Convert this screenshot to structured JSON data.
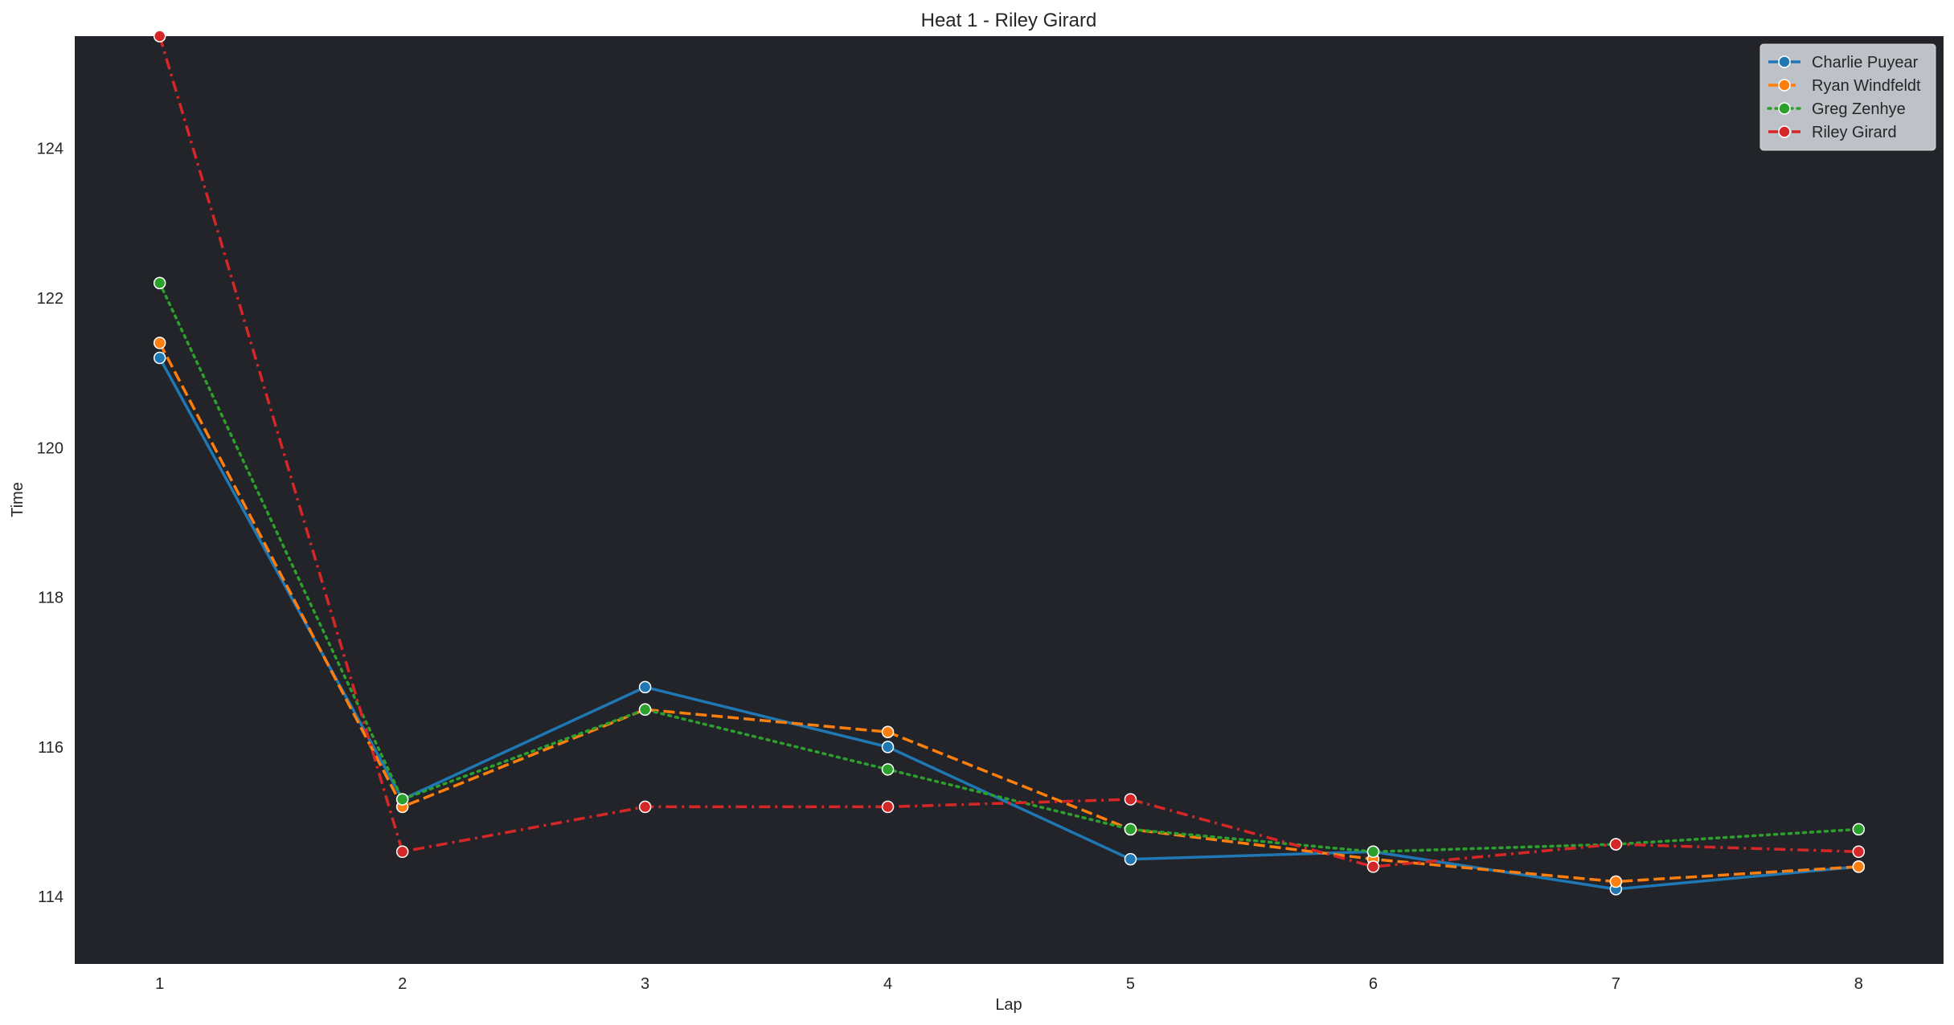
{
  "chart_data": {
    "type": "line",
    "title": "Heat 1 - Riley Girard",
    "xlabel": "Lap",
    "ylabel": "Time",
    "x": [
      1,
      2,
      3,
      4,
      5,
      6,
      7,
      8
    ],
    "xlim": [
      0.65,
      8.35
    ],
    "ylim": [
      113.1,
      125.5
    ],
    "xticks": [
      1,
      2,
      3,
      4,
      5,
      6,
      7,
      8
    ],
    "yticks": [
      114,
      116,
      118,
      120,
      122,
      124
    ],
    "grid": false,
    "plot_background": "#222429",
    "legend_position": "top-right",
    "series": [
      {
        "name": "Charlie Puyear",
        "color": "#1f77b4",
        "dash": "solid",
        "values": [
          121.2,
          115.3,
          116.8,
          116.0,
          114.5,
          114.6,
          114.1,
          114.4
        ]
      },
      {
        "name": "Ryan Windfeldt",
        "color": "#ff7f0e",
        "dash": "dashed",
        "values": [
          121.4,
          115.2,
          116.5,
          116.2,
          114.9,
          114.5,
          114.2,
          114.4
        ]
      },
      {
        "name": "Greg Zenhye",
        "color": "#2ca02c",
        "dash": "dotted",
        "values": [
          122.2,
          115.3,
          116.5,
          115.7,
          114.9,
          114.6,
          114.7,
          114.9
        ]
      },
      {
        "name": "Riley Girard",
        "color": "#d62728",
        "dash": "dashdot",
        "values": [
          125.5,
          114.6,
          115.2,
          115.2,
          115.3,
          114.4,
          114.7,
          114.6
        ]
      }
    ]
  }
}
